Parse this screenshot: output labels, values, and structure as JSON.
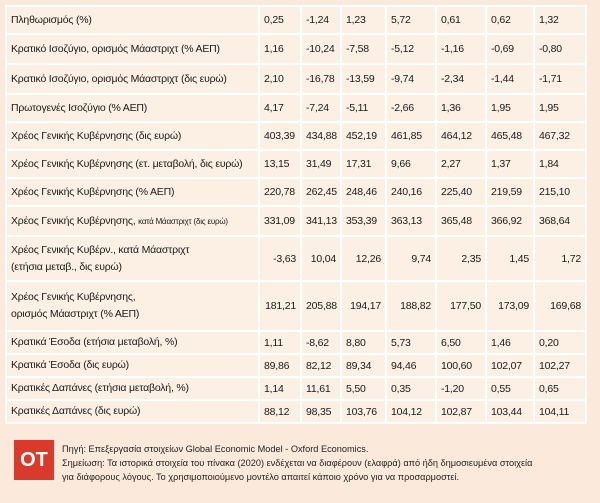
{
  "table": {
    "rows": [
      {
        "label": [
          "Πληθωρισμός (%)"
        ],
        "values": [
          "0,25",
          "-1,24",
          "1,23",
          "5,72",
          "0,61",
          "0,62",
          "1,32"
        ]
      },
      {
        "label": [
          "Κρατικό Ισοζύγιο, ορισμός Μάαστριχτ (% ΑΕΠ)"
        ],
        "values": [
          "1,16",
          "-10,24",
          "-7,58",
          "-5,12",
          "-1,16",
          "-0,69",
          "-0,80"
        ]
      },
      {
        "label": [
          "Κρατικό Ισοζύγιο, ορισμός Μάαστριχτ (δις ευρώ)"
        ],
        "values": [
          "2,10",
          "-16,78",
          "-13,59",
          "-9,74",
          "-2,34",
          "-1,44",
          "-1,71"
        ]
      },
      {
        "label": [
          "Πρωτογενές Ισοζύγιο (% ΑΕΠ)"
        ],
        "values": [
          "4,17",
          "-7,24",
          "-5,11",
          "-2,66",
          "1,36",
          "1,95",
          "1,95"
        ]
      },
      {
        "label": [
          "Χρέος Γενικής Κυβέρνησης (δις ευρώ)"
        ],
        "values": [
          "403,39",
          "434,88",
          "452,19",
          "461,85",
          "464,12",
          "465,48",
          "467,32"
        ]
      },
      {
        "label": [
          "Χρέος Γενικής Κυβέρνησης (ετ. μεταβολή, δις ευρώ)"
        ],
        "values": [
          "13,15",
          "31,49",
          "17,31",
          "9,66",
          "2,27",
          "1,37",
          "1,84"
        ]
      },
      {
        "label": [
          "Χρέος Γενικής Κυβέρνησης (% ΑΕΠ)"
        ],
        "values": [
          "220,78",
          "262,45",
          "248,46",
          "240,16",
          "225,40",
          "219,59",
          "215,10"
        ]
      },
      {
        "label": [
          "Χρέος Γενικής Κυβέρνησης,"
        ],
        "label_small": "κατά Μάαστριχτ (δις ευρώ)",
        "values": [
          "331,09",
          "341,13",
          "353,39",
          "363,13",
          "365,48",
          "366,92",
          "368,64"
        ]
      },
      {
        "label": [
          "Χρέος Γενικής Κυβέρν., κατά Μάαστριχτ",
          "(ετήσια μεταβ., δις ευρώ)"
        ],
        "values": [
          "-3,63",
          "10,04",
          "12,26",
          "9,74",
          "2,35",
          "1,45",
          "1,72"
        ]
      },
      {
        "label": [
          "Χρέος Γενικής Κυβέρνησης,",
          "ορισμός Μάαστριχτ (% ΑΕΠ)"
        ],
        "values": [
          "181,21",
          "205,88",
          "194,17",
          "188,82",
          "177,50",
          "173,09",
          "169,68"
        ]
      },
      {
        "label": [
          "Κρατικά Έσοδα (ετήσια μεταβολή, %)"
        ],
        "values": [
          "1,11",
          "-8,62",
          "8,80",
          "5,73",
          "6,50",
          "1,46",
          "0,20"
        ]
      },
      {
        "label": [
          "Κρατικά Έσοδα (δις ευρώ)"
        ],
        "values": [
          "89,86",
          "82,12",
          "89,34",
          "94,46",
          "100,60",
          "102,07",
          "102,27"
        ]
      },
      {
        "label": [
          "Κρατικές Δαπάνες (ετήσια μεταβολή, %)"
        ],
        "values": [
          "1,14",
          "11,61",
          "5,50",
          "0,35",
          "-1,20",
          "0,55",
          "0,65"
        ]
      },
      {
        "label": [
          "Κρατικές Δαπάνες (δις ευρώ)"
        ],
        "values": [
          "88,12",
          "98,35",
          "103,76",
          "104,12",
          "102,87",
          "103,44",
          "104,11"
        ]
      }
    ]
  },
  "footer": {
    "logo": "OT",
    "lines": [
      "Πηγή: Επεξεργασία στοιχείων Global Economic Model - Oxford Economics.",
      "Σημείωση: Τα ιστορικά στοιχεία του πίνακα (2020) ενδέχεται να διαφέρουν (ελαφρά) από ήδη δημοσιευμένα στοιχεία",
      "για διάφορους λόγους. Το χρησιμοποιούμενο μοντέλο απαιτεί κάποιο χρόνο για να προσαρμοστεί."
    ]
  }
}
